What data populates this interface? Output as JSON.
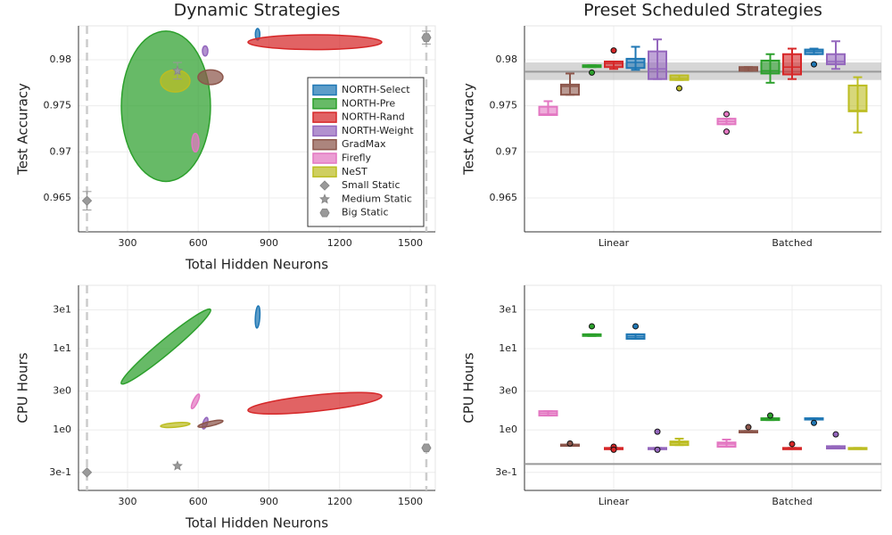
{
  "chart_data": [
    {
      "type": "scatter",
      "title": "Dynamic Strategies",
      "xlabel": "Total Hidden Neurons",
      "ylabel": "Test Accuracy",
      "xlim": [
        92,
        1606
      ],
      "ylim": [
        0.96133,
        0.98367
      ],
      "xticks": [
        300,
        600,
        900,
        1200,
        1500
      ],
      "yticks": [
        0.965,
        0.97,
        0.975,
        0.98
      ],
      "grid": true,
      "legend": "right",
      "series": [
        {
          "name": "NORTH-Select",
          "color": "#1f77b4",
          "x": [
            849,
            855
          ],
          "y": [
            0.98213,
            0.98338
          ]
        },
        {
          "name": "NORTH-Pre",
          "color": "#2ca02c",
          "x": [
            274,
            652
          ],
          "y": [
            0.9668,
            0.9831
          ]
        },
        {
          "name": "NORTH-Rand",
          "color": "#d62728",
          "x": [
            811,
            1379
          ],
          "y": [
            0.9811,
            0.9827
          ]
        },
        {
          "name": "NORTH-Weight",
          "color": "#9467bd",
          "x": [
            618,
            641
          ],
          "y": [
            0.9804,
            0.9815
          ]
        },
        {
          "name": "GradMax",
          "color": "#8c564b",
          "x": [
            599,
            705
          ],
          "y": [
            0.9773,
            0.9789
          ]
        },
        {
          "name": "Firefly",
          "color": "#e377c2",
          "x": [
            573,
            603
          ],
          "y": [
            0.97,
            0.972
          ]
        },
        {
          "name": "NeST",
          "color": "#bcbd22",
          "x": [
            440,
            565
          ],
          "y": [
            0.9765,
            0.9789
          ]
        }
      ],
      "static": [
        {
          "name": "Small Static",
          "marker": "diamond",
          "x": 128,
          "y": 0.9647,
          "err": 0.001
        },
        {
          "name": "Medium Static",
          "marker": "star",
          "x": 512,
          "y": 0.9788,
          "err": 0.0009
        },
        {
          "name": "Big Static",
          "marker": "hexagon",
          "x": 1568,
          "y": 0.9824,
          "err": 0.0007
        }
      ]
    },
    {
      "type": "box",
      "title": "Preset Scheduled Strategies",
      "ylabel": "Test Accuracy",
      "categories": [
        "Linear",
        "Batched"
      ],
      "ylim": [
        0.96133,
        0.98367
      ],
      "yticks": [
        0.965,
        0.97,
        0.975,
        0.98
      ],
      "grid": true,
      "hline": {
        "value": 0.9787,
        "band": [
          0.9778,
          0.9797
        ]
      },
      "series": [
        {
          "color": "#e377c2",
          "boxes": [
            [
              0.974,
              0.974,
              0.9741,
              0.9749,
              0.9755
            ],
            [
              0.973,
              0.973,
              0.9733,
              0.9736,
              0.9736
            ]
          ],
          "outliers": [
            [],
            [
              0.9741,
              0.9722
            ]
          ]
        },
        {
          "color": "#8c564b",
          "boxes": [
            [
              0.9762,
              0.9762,
              0.9771,
              0.9773,
              0.9785
            ],
            [
              0.9788,
              0.9788,
              0.979,
              0.9792,
              0.9792
            ]
          ],
          "outliers": [
            [],
            []
          ]
        },
        {
          "color": "#2ca02c",
          "boxes": [
            [
              0.9792,
              0.9792,
              0.9793,
              0.9794,
              0.9794
            ],
            [
              0.9775,
              0.9785,
              0.9788,
              0.9799,
              0.9806
            ]
          ],
          "outliers": [
            [
              0.9786
            ],
            []
          ]
        },
        {
          "color": "#d62728",
          "boxes": [
            [
              0.979,
              0.9792,
              0.9796,
              0.9798,
              0.9798
            ],
            [
              0.9779,
              0.9784,
              0.9792,
              0.9806,
              0.9812
            ]
          ],
          "outliers": [
            [
              0.981
            ],
            []
          ]
        },
        {
          "color": "#1f77b4",
          "boxes": [
            [
              0.9789,
              0.9791,
              0.9797,
              0.9801,
              0.9814
            ],
            [
              0.9806,
              0.9806,
              0.9809,
              0.9811,
              0.9812
            ]
          ],
          "outliers": [
            [],
            [
              0.9795
            ]
          ]
        },
        {
          "color": "#9467bd",
          "boxes": [
            [
              0.9779,
              0.9779,
              0.979,
              0.9809,
              0.9822
            ],
            [
              0.979,
              0.9795,
              0.9798,
              0.9806,
              0.982
            ]
          ],
          "outliers": [
            [],
            []
          ]
        },
        {
          "color": "#bcbd22",
          "boxes": [
            [
              0.9778,
              0.9778,
              0.978,
              0.9783,
              0.9783
            ],
            [
              0.9721,
              0.9744,
              0.9745,
              0.9772,
              0.9781
            ]
          ],
          "outliers": [
            [
              0.9769
            ],
            []
          ]
        }
      ]
    },
    {
      "type": "scatter",
      "xlabel": "Total Hidden Neurons",
      "ylabel": "CPU Hours",
      "log_y": true,
      "ellipse_tilt": true,
      "xlim": [
        92,
        1606
      ],
      "ylim": [
        0.18,
        60
      ],
      "xticks": [
        300,
        600,
        900,
        1200,
        1500
      ],
      "yticks": [
        {
          "value": 0.3,
          "label": "3e-1"
        },
        {
          "value": 1,
          "label": "1e0"
        },
        {
          "value": 3,
          "label": "3e0"
        },
        {
          "value": 10,
          "label": "1e1"
        },
        {
          "value": 30,
          "label": "3e1"
        }
      ],
      "grid": true,
      "series": [
        {
          "color": "#1f77b4",
          "x": [
            849,
            855
          ],
          "y": [
            17.9,
            33.6
          ]
        },
        {
          "color": "#2ca02c",
          "x": [
            274,
            652
          ],
          "y": [
            3.7,
            30.3
          ]
        },
        {
          "color": "#d62728",
          "x": [
            811,
            1379
          ],
          "y": [
            1.74,
            2.6
          ]
        },
        {
          "color": "#9467bd",
          "x": [
            622,
            637
          ],
          "y": [
            1.03,
            1.42
          ]
        },
        {
          "color": "#8c564b",
          "x": [
            599,
            705
          ],
          "y": [
            1.1,
            1.29
          ]
        },
        {
          "color": "#e377c2",
          "x": [
            573,
            603
          ],
          "y": [
            1.83,
            2.75
          ]
        },
        {
          "color": "#bcbd22",
          "x": [
            440,
            565
          ],
          "y": [
            1.11,
            1.19
          ]
        }
      ],
      "static": [
        {
          "marker": "diamond",
          "x": 128,
          "y": 0.3
        },
        {
          "marker": "star",
          "x": 512,
          "y": 0.36
        },
        {
          "marker": "hexagon",
          "x": 1568,
          "y": 0.6
        }
      ]
    },
    {
      "type": "box",
      "ylabel": "CPU Hours",
      "log_y": true,
      "categories": [
        "Linear",
        "Batched"
      ],
      "ylim": [
        0.18,
        60
      ],
      "yticks": [
        {
          "value": 0.3,
          "label": "3e-1"
        },
        {
          "value": 1,
          "label": "1e0"
        },
        {
          "value": 3,
          "label": "3e0"
        },
        {
          "value": 10,
          "label": "1e1"
        },
        {
          "value": 30,
          "label": "3e1"
        }
      ],
      "grid": true,
      "hline": {
        "value": 0.38
      },
      "series": [
        {
          "color": "#e377c2",
          "boxes": [
            [
              1.5,
              1.5,
              1.6,
              1.7,
              1.7
            ],
            [
              0.62,
              0.62,
              0.67,
              0.7,
              0.76
            ]
          ],
          "outliers": [
            [],
            []
          ]
        },
        {
          "color": "#8c564b",
          "boxes": [
            [
              0.64,
              0.64,
              0.65,
              0.66,
              0.66
            ],
            [
              0.93,
              0.93,
              0.95,
              0.97,
              0.97
            ]
          ],
          "outliers": [
            [
              0.68
            ],
            [
              1.08
            ]
          ]
        },
        {
          "color": "#2ca02c",
          "boxes": [
            [
              14.3,
              14.3,
              14.6,
              15,
              15
            ],
            [
              1.32,
              1.32,
              1.35,
              1.39,
              1.39
            ]
          ],
          "outliers": [
            [
              18.8
            ],
            [
              1.5
            ]
          ]
        },
        {
          "color": "#d62728",
          "boxes": [
            [
              0.58,
              0.58,
              0.59,
              0.6,
              0.6
            ],
            [
              0.59,
              0.59,
              0.595,
              0.6,
              0.6
            ]
          ],
          "outliers": [
            [
              0.62,
              0.57
            ],
            [
              0.67
            ]
          ]
        },
        {
          "color": "#1f77b4",
          "boxes": [
            [
              13.2,
              13.2,
              14,
              15,
              15
            ],
            [
              1.36,
              1.36,
              1.38,
              1.39,
              1.39
            ]
          ],
          "outliers": [
            [
              18.8
            ],
            [
              1.22
            ]
          ]
        },
        {
          "color": "#9467bd",
          "boxes": [
            [
              0.58,
              0.58,
              0.59,
              0.6,
              0.6
            ],
            [
              0.59,
              0.59,
              0.61,
              0.63,
              0.63
            ]
          ],
          "outliers": [
            [
              0.95,
              0.57
            ],
            [
              0.88
            ]
          ]
        },
        {
          "color": "#bcbd22",
          "boxes": [
            [
              0.65,
              0.65,
              0.69,
              0.72,
              0.78
            ],
            [
              0.59,
              0.59,
              0.595,
              0.6,
              0.6
            ]
          ],
          "outliers": [
            [],
            []
          ]
        }
      ]
    }
  ]
}
